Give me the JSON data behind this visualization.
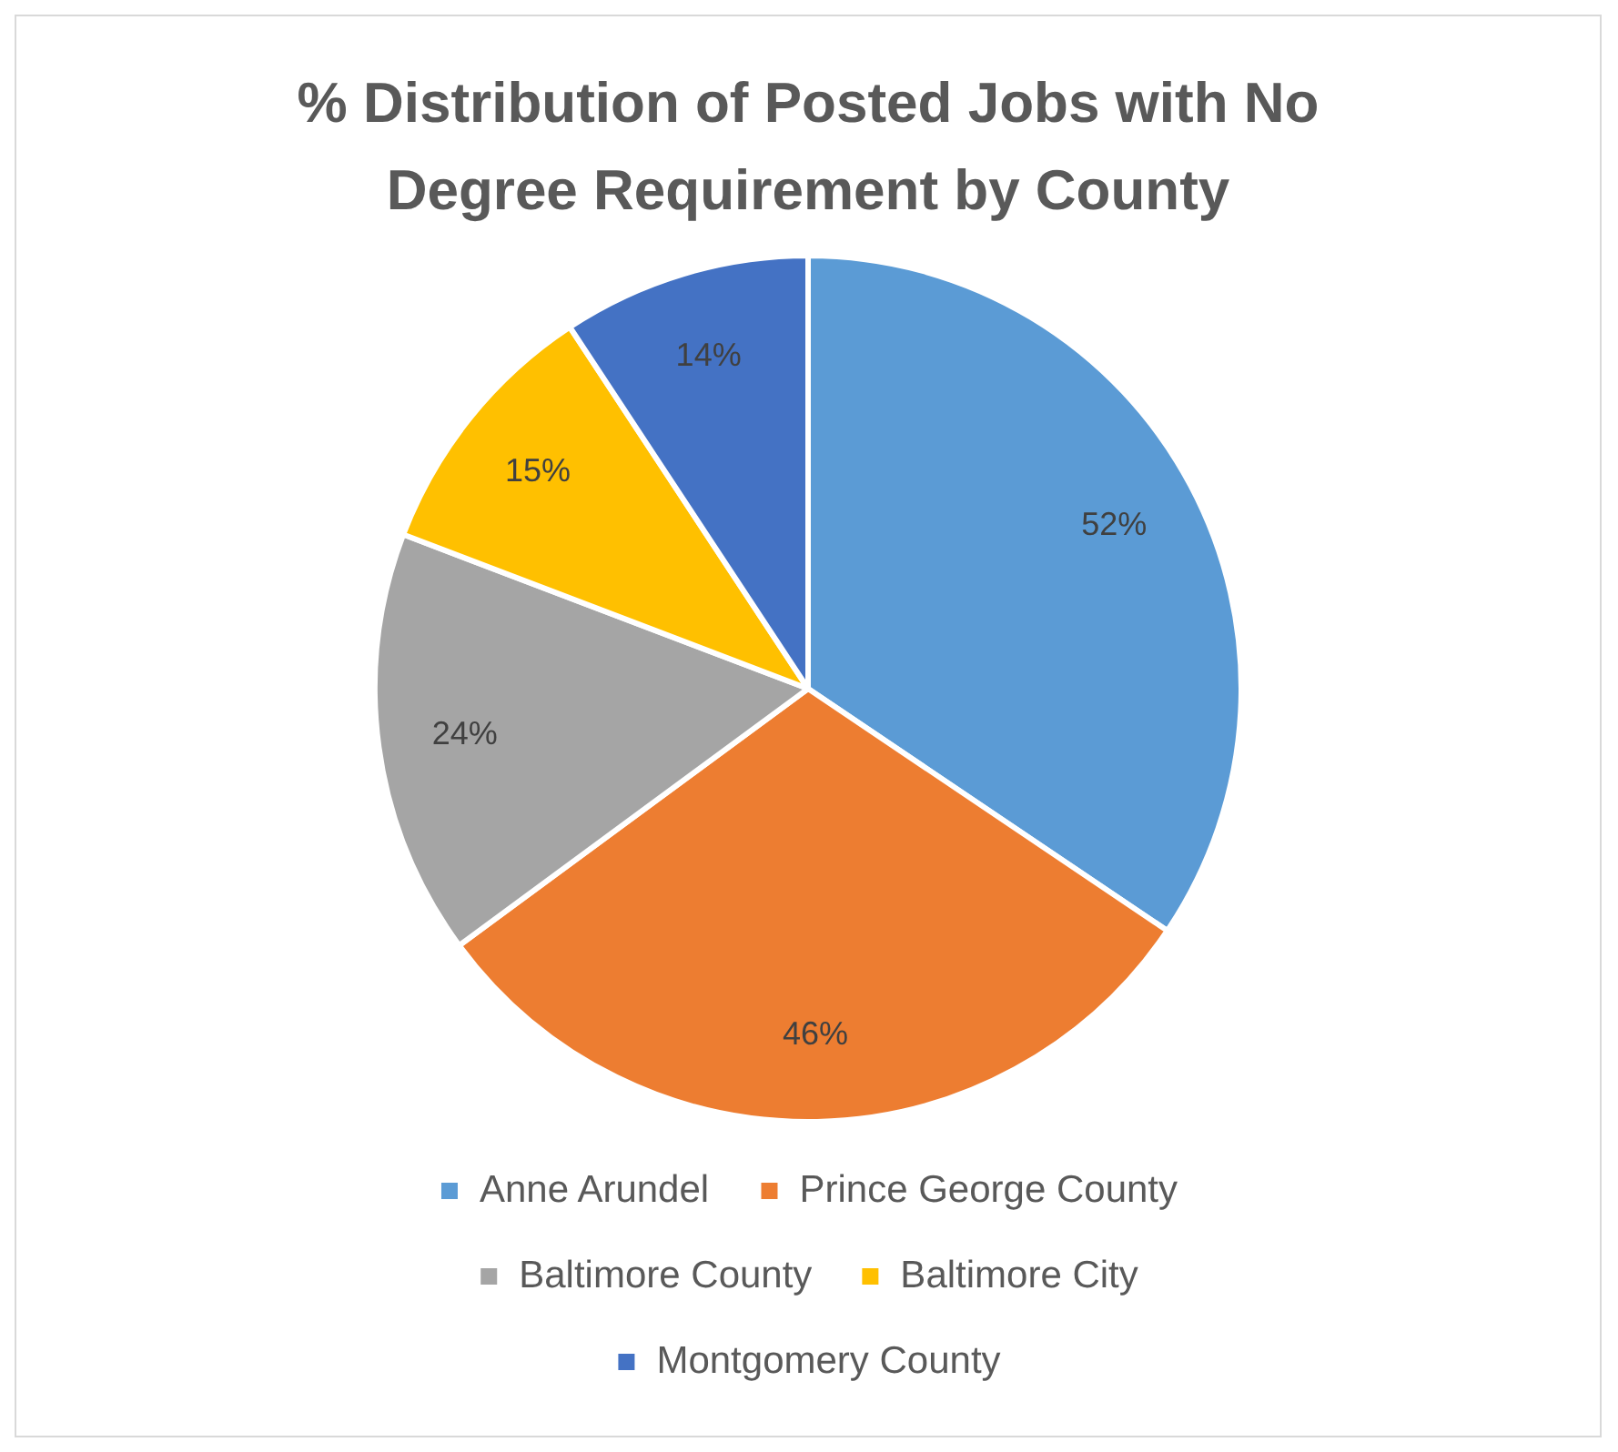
{
  "chart_data": {
    "type": "pie",
    "title": "% Distribution of Posted Jobs with No Degree Requirement by County",
    "categories": [
      "Anne Arundel",
      "Prince George County",
      "Baltimore County",
      "Baltimore City",
      "Montgomery County"
    ],
    "values": [
      52,
      46,
      24,
      15,
      14
    ],
    "value_labels": [
      "52%",
      "46%",
      "24%",
      "15%",
      "14%"
    ],
    "colors": [
      "#5b9bd5",
      "#ed7d31",
      "#a5a5a5",
      "#ffc000",
      "#4472c4"
    ],
    "legend": "bottom"
  }
}
